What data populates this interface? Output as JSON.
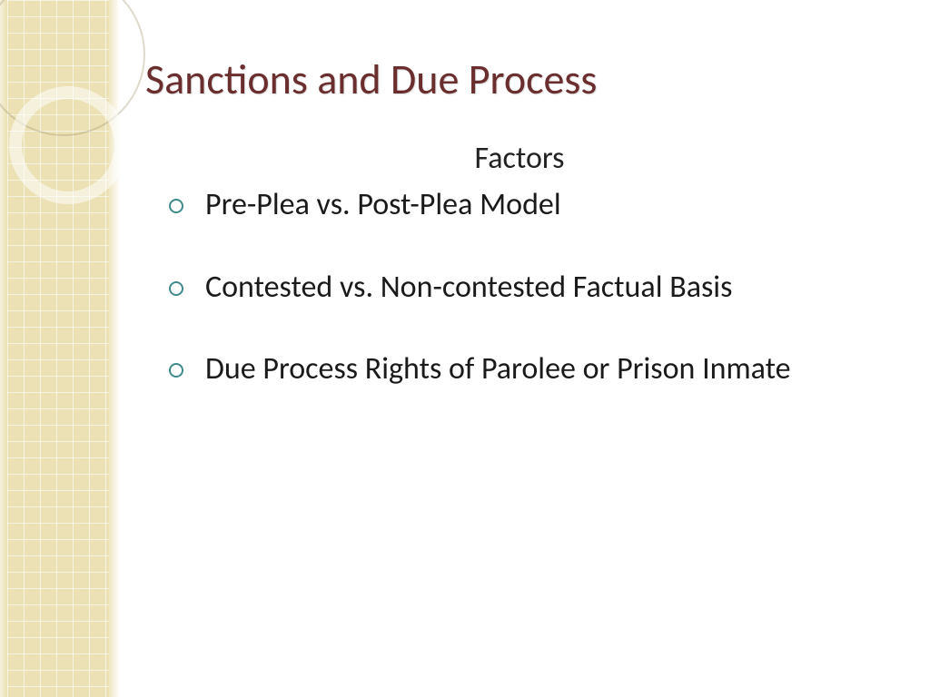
{
  "slide": {
    "title": "Sanctions and Due Process",
    "subtitle": "Factors",
    "bullets": [
      "Pre-Plea vs. Post-Plea Model",
      "Contested vs. Non-contested Factual Basis",
      "Due Process Rights of Parolee or Prison Inmate"
    ]
  },
  "style": {
    "title_color": "#6b2e2e",
    "title_fontsize": 46,
    "body_fontsize": 34,
    "bullet_ring_color": "#3f8a8a",
    "sidebar_grid_color": "#e8dca8",
    "background_color": "#ffffff"
  }
}
